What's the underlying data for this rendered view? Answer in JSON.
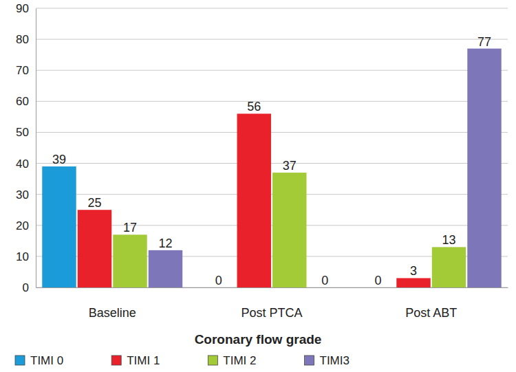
{
  "chart_data": {
    "type": "bar",
    "categories": [
      "Baseline",
      "Post PTCA",
      "Post ABT"
    ],
    "series": [
      {
        "name": "TIMI 0",
        "color": "#1b9bd7",
        "values": [
          39,
          0,
          0
        ]
      },
      {
        "name": "TIMI 1",
        "color": "#e8212b",
        "values": [
          25,
          56,
          3
        ]
      },
      {
        "name": "TIMI 2",
        "color": "#a3cb38",
        "values": [
          17,
          37,
          13
        ]
      },
      {
        "name": "TIMI3",
        "color": "#7d76b8",
        "values": [
          12,
          0,
          77
        ]
      }
    ],
    "x_label": "Coronary flow grade",
    "ylim": [
      0,
      90
    ],
    "yticks": [
      0,
      10,
      20,
      30,
      40,
      50,
      60,
      70,
      80,
      90
    ],
    "grid": true,
    "legend": "bottom",
    "data_labels": true
  }
}
